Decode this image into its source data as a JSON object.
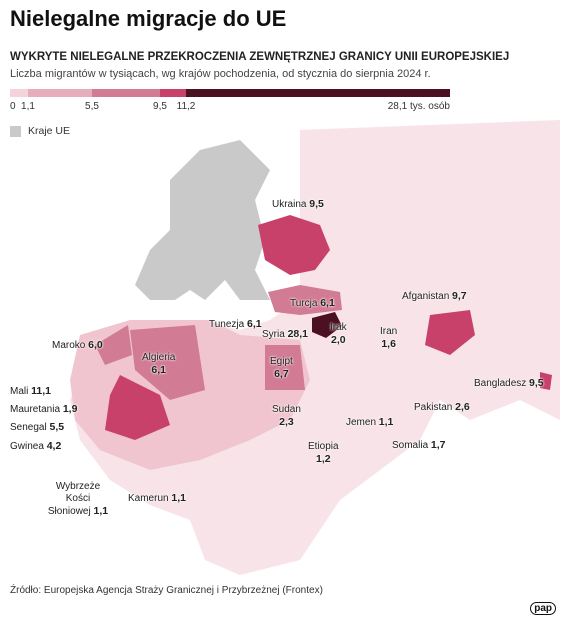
{
  "header": {
    "title": "Nielegalne migracje do UE",
    "subtitle": "WYKRYTE NIELEGALNE PRZEKROCZENIA ZEWNĘTRZNEJ GRANICY UNII EUROPEJSKIEJ",
    "description": "Liczba migrantów w tysiącach, wg krajów pochodzenia, od stycznia do sierpnia 2024 r."
  },
  "legend": {
    "breaks": [
      "0",
      "1,1",
      "5,5",
      "9,5",
      "11,2",
      "28,1 tys. osób"
    ],
    "colors": [
      "#f4d3db",
      "#e6aebc",
      "#d27b95",
      "#c8416a",
      "#4b1022"
    ],
    "eu_label": "Kraje UE"
  },
  "countries": [
    {
      "name": "Ukraina",
      "value": "9,5"
    },
    {
      "name": "Turcja",
      "value": "6,1"
    },
    {
      "name": "Tunezja",
      "value": "6,1"
    },
    {
      "name": "Maroko",
      "value": "6,0"
    },
    {
      "name": "Algieria",
      "value": "6,1"
    },
    {
      "name": "Syria",
      "value": "28,1"
    },
    {
      "name": "Irak",
      "value": "2,0"
    },
    {
      "name": "Iran",
      "value": "1,6"
    },
    {
      "name": "Afganistan",
      "value": "9,7"
    },
    {
      "name": "Egipt",
      "value": "6,7"
    },
    {
      "name": "Sudan",
      "value": "2,3"
    },
    {
      "name": "Jemen",
      "value": "1,1"
    },
    {
      "name": "Somalia",
      "value": "1,7"
    },
    {
      "name": "Etiopia",
      "value": "1,2"
    },
    {
      "name": "Pakistan",
      "value": "2,6"
    },
    {
      "name": "Bangladesz",
      "value": "9,5"
    },
    {
      "name": "Mali",
      "value": "11,1"
    },
    {
      "name": "Mauretania",
      "value": "1,9"
    },
    {
      "name": "Senegal",
      "value": "5,5"
    },
    {
      "name": "Gwinea",
      "value": "4,2"
    },
    {
      "name": "Wybrzeże Kości Słoniowej",
      "value": "1,1"
    },
    {
      "name": "Kamerun",
      "value": "1,1"
    }
  ],
  "source": "Źródło: Europejska Agencja Straży Granicznej i Przybrzeżnej (Frontex)",
  "logo": "pap"
}
